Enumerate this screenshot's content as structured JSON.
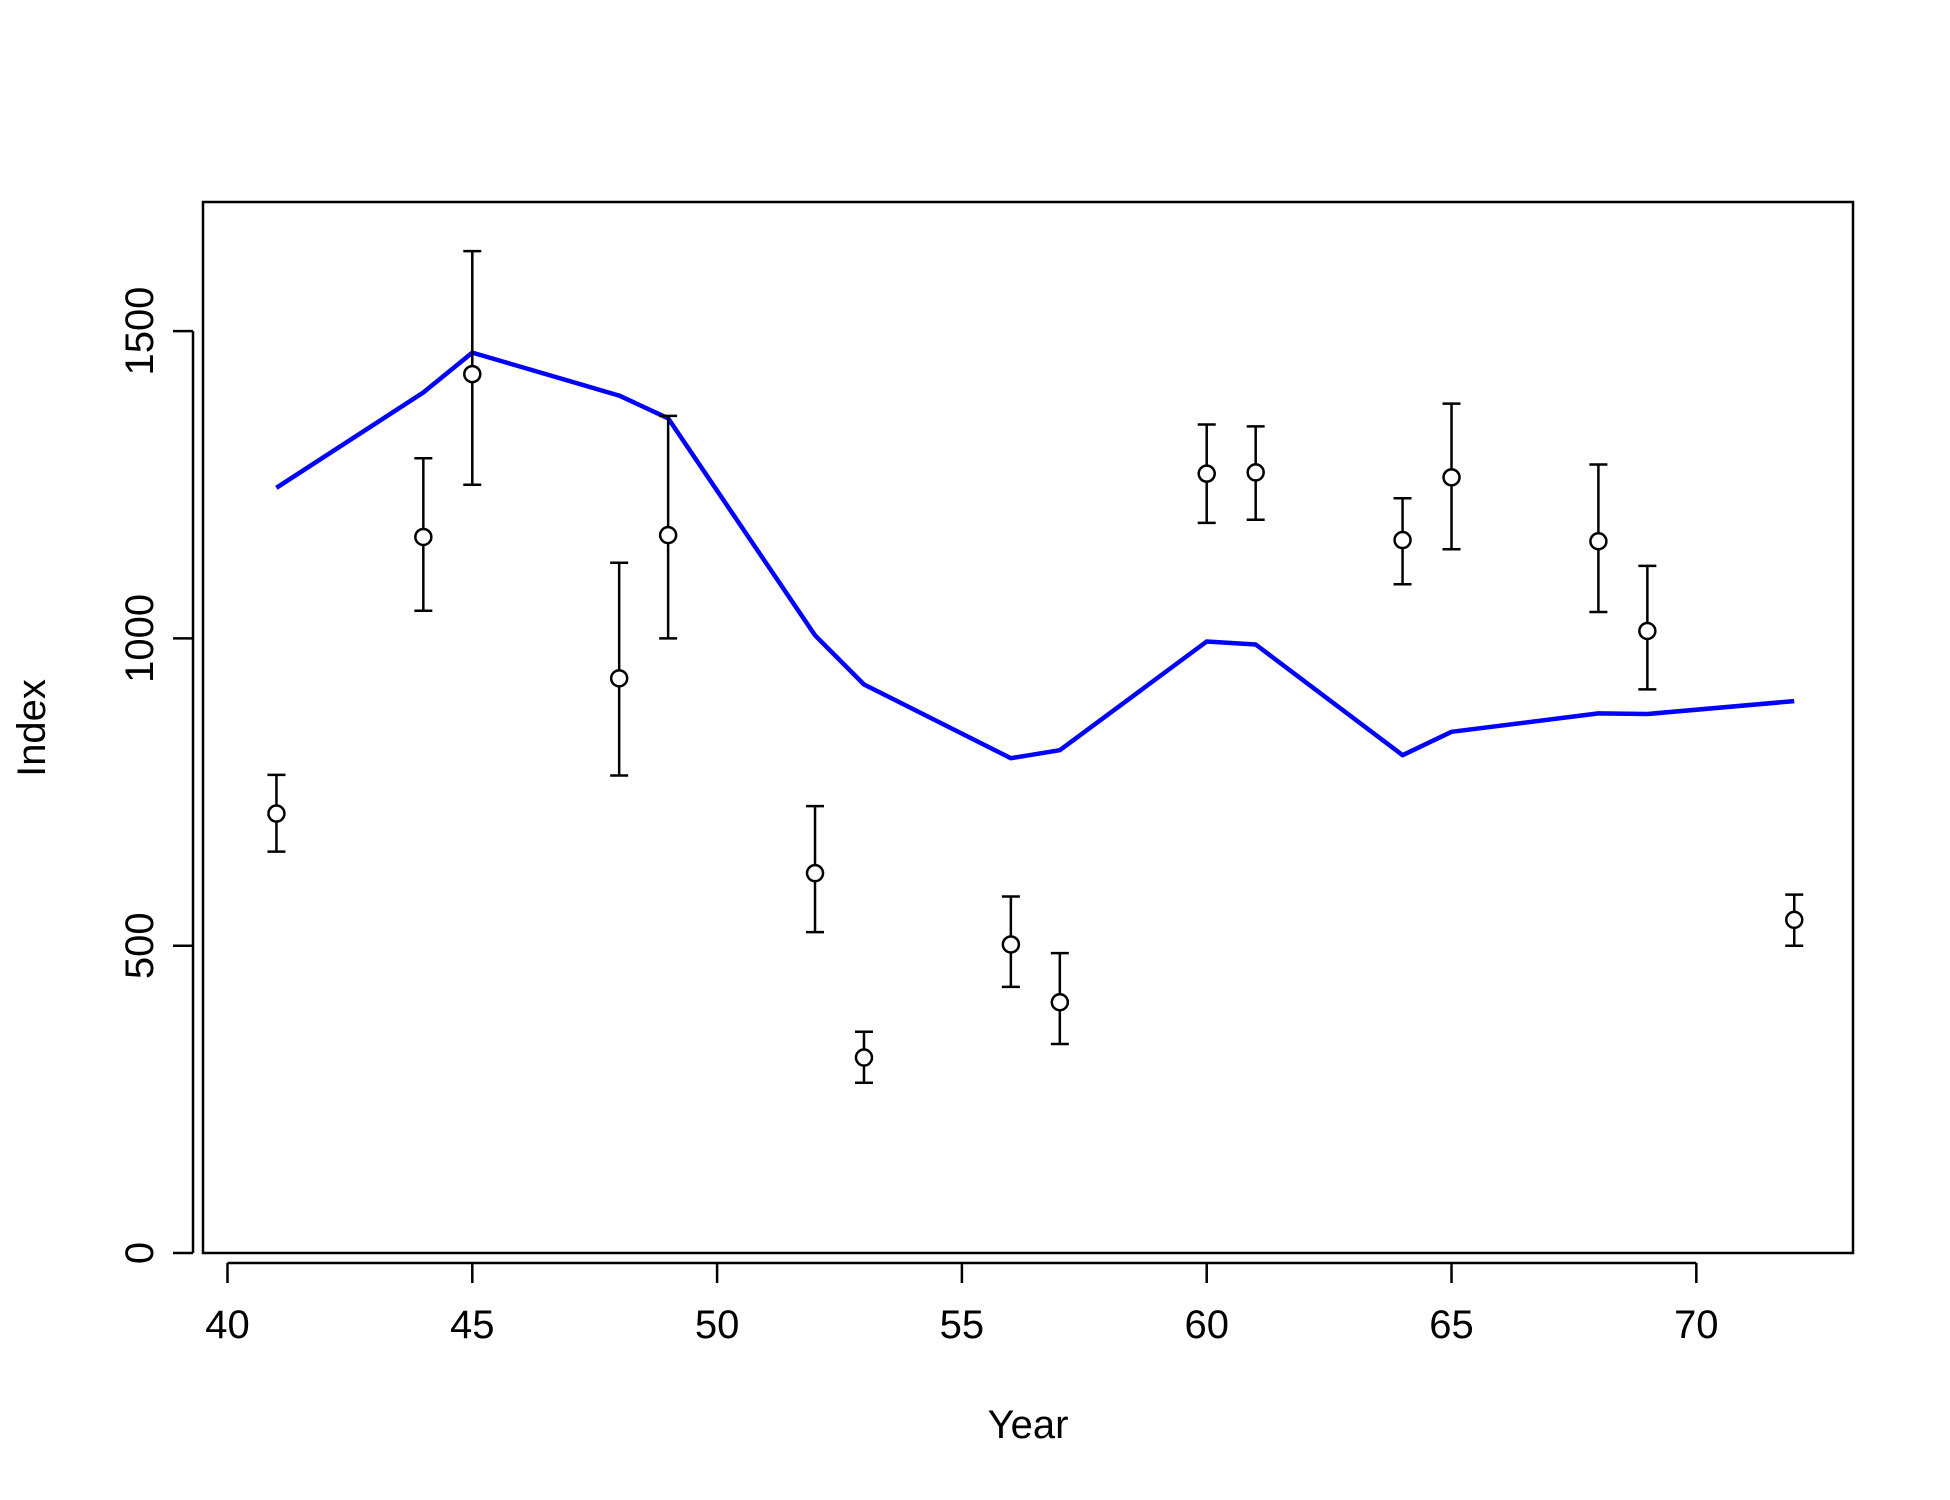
{
  "chart_data": {
    "type": "line",
    "xlabel": "Year",
    "ylabel": "Index",
    "xlim": [
      39.5,
      73.2
    ],
    "ylim": [
      0,
      1710
    ],
    "xticks": [
      40,
      45,
      50,
      55,
      60,
      65,
      70
    ],
    "yticks": [
      0,
      500,
      1000,
      1500
    ],
    "grid": false,
    "series": [
      {
        "kind": "line",
        "color": "#0000FF",
        "x": [
          41,
          44,
          45,
          48,
          49,
          52,
          53,
          56,
          57,
          60,
          61,
          64,
          65,
          68,
          69,
          72
        ],
        "y": [
          1245,
          1400,
          1465,
          1395,
          1358,
          1005,
          925,
          805,
          818,
          995,
          990,
          810,
          848,
          878,
          877,
          898
        ]
      },
      {
        "kind": "points-with-errorbars",
        "color": "#000000",
        "x": [
          41,
          44,
          45,
          48,
          49,
          52,
          53,
          56,
          57,
          60,
          61,
          64,
          65,
          68,
          69,
          72
        ],
        "y": [
          715,
          1165,
          1430,
          935,
          1168,
          618,
          318,
          502,
          408,
          1268,
          1270,
          1160,
          1262,
          1158,
          1012,
          542
        ],
        "lower": [
          653,
          1045,
          1250,
          777,
          1000,
          522,
          277,
          433,
          340,
          1188,
          1193,
          1088,
          1145,
          1043,
          917,
          500
        ],
        "upper": [
          778,
          1293,
          1630,
          1123,
          1362,
          727,
          360,
          580,
          488,
          1348,
          1345,
          1228,
          1382,
          1283,
          1118,
          583
        ]
      }
    ]
  }
}
